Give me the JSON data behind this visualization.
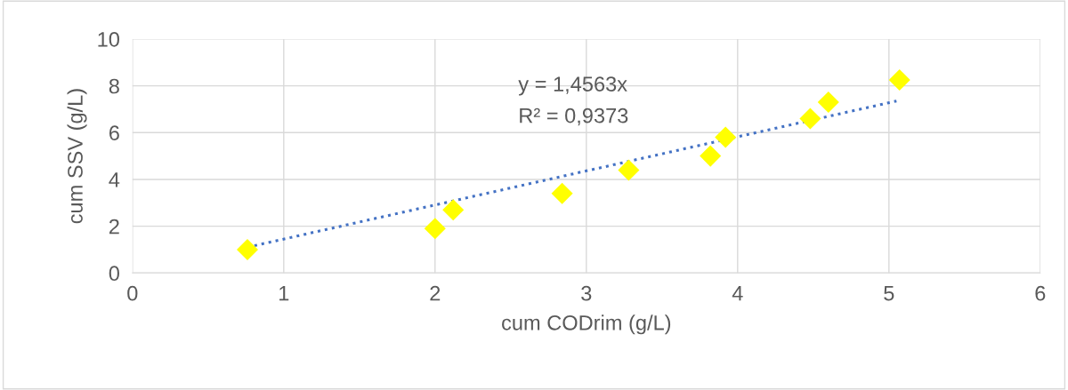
{
  "chart_data": {
    "type": "scatter",
    "xlabel": "cum CODrim (g/L)",
    "ylabel": "cum SSV (g/L)",
    "xlim": [
      0,
      6
    ],
    "xticks": [
      0,
      1,
      2,
      3,
      4,
      5,
      6
    ],
    "ylim": [
      0,
      10
    ],
    "yticks": [
      0,
      2,
      4,
      6,
      8,
      10
    ],
    "grid": true,
    "series": [
      {
        "color": "#ffff00",
        "marker": "diamond",
        "x": [
          0.76,
          2.0,
          2.12,
          2.84,
          3.28,
          3.82,
          3.92,
          4.48,
          4.6,
          5.07
        ],
        "values": [
          1.0,
          1.9,
          2.7,
          3.4,
          4.4,
          5.0,
          5.8,
          6.6,
          7.3,
          8.25
        ]
      },
      {
        "type": "line",
        "color": "#4472c4",
        "line_style": "dotted",
        "marker": "none",
        "x": [
          0.76,
          5.05
        ],
        "values": [
          1.1,
          7.35
        ]
      }
    ],
    "annotations": [
      "y = 1,4563x",
      "R² = 0,9373"
    ]
  }
}
